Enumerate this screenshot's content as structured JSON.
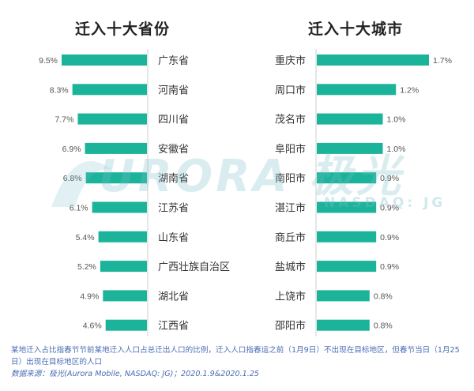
{
  "chart_data": [
    {
      "type": "bar",
      "title": "迁入十大省份",
      "categories": [
        "广东省",
        "河南省",
        "四川省",
        "安徽省",
        "湖南省",
        "江苏省",
        "山东省",
        "广西壮族自治区",
        "湖北省",
        "江西省"
      ],
      "values": [
        9.5,
        8.3,
        7.7,
        6.9,
        6.8,
        6.1,
        5.4,
        5.2,
        4.9,
        4.6
      ],
      "value_labels": [
        "9.5%",
        "8.3%",
        "7.7%",
        "6.9%",
        "6.8%",
        "6.1%",
        "5.4%",
        "5.2%",
        "4.9%",
        "4.6%"
      ],
      "orientation": "horizontal",
      "direction": "leftward"
    },
    {
      "type": "bar",
      "title": "迁入十大城市",
      "categories": [
        "重庆市",
        "周口市",
        "茂名市",
        "阜阳市",
        "南阳市",
        "湛江市",
        "商丘市",
        "盐城市",
        "上饶市",
        "邵阳市"
      ],
      "values": [
        1.7,
        1.2,
        1.0,
        1.0,
        0.9,
        0.9,
        0.9,
        0.9,
        0.8,
        0.8
      ],
      "value_labels": [
        "1.7%",
        "1.2%",
        "1.0%",
        "1.0%",
        "0.9%",
        "0.9%",
        "0.9%",
        "0.9%",
        "0.8%",
        "0.8%"
      ],
      "orientation": "horizontal",
      "direction": "rightward"
    }
  ],
  "colors": {
    "bar": "#1bb39a",
    "category_text": "#333333",
    "footer_text": "#4a6bb5"
  },
  "watermark": {
    "main": "URORA 极光",
    "sub": "NASDAQ: JG"
  },
  "footer": {
    "note": "某地迁入占比指春节节前某地迁入人口占总迁出人口的比例，迁入人口指春运之前（1月9日）不出现在目标地区，但春节当日（1月25日）出现在目标地区的人口",
    "source": "数据来源：极光(Aurora Mobile, NASDAQ: JG)；2020.1.9&2020.1.25"
  }
}
